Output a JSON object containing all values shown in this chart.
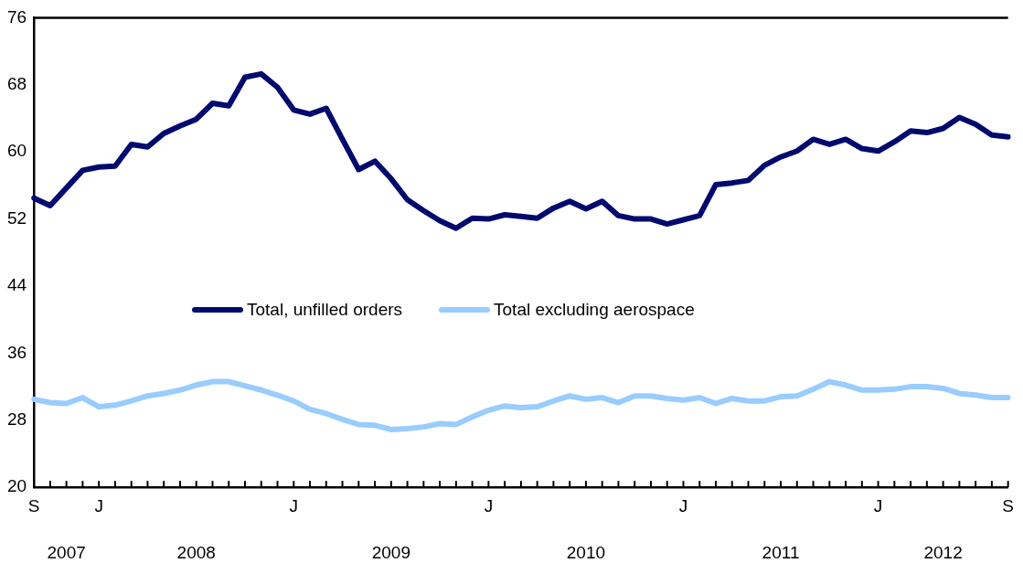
{
  "chart_data": {
    "type": "line",
    "categories": [
      "S",
      null,
      null,
      null,
      "J",
      null,
      null,
      null,
      null,
      null,
      null,
      null,
      null,
      null,
      null,
      null,
      "J",
      null,
      null,
      null,
      null,
      null,
      null,
      null,
      null,
      null,
      null,
      null,
      "J",
      null,
      null,
      null,
      null,
      null,
      null,
      null,
      null,
      null,
      null,
      null,
      "J",
      null,
      null,
      null,
      null,
      null,
      null,
      null,
      null,
      null,
      null,
      null,
      "J",
      null,
      null,
      null,
      null,
      null,
      null,
      null,
      "S"
    ],
    "series": [
      {
        "name": "Total, unfilled orders",
        "color": "#000a6e",
        "values": [
          54.5,
          53.6,
          55.7,
          57.8,
          58.2,
          58.3,
          60.9,
          60.6,
          62.2,
          63.1,
          63.9,
          65.8,
          65.5,
          68.9,
          69.3,
          67.7,
          65.0,
          64.5,
          65.2,
          61.5,
          57.9,
          58.9,
          56.8,
          54.3,
          53.0,
          51.8,
          50.9,
          52.1,
          52.0,
          52.5,
          52.3,
          52.1,
          53.3,
          54.1,
          53.2,
          54.1,
          52.4,
          52.0,
          52.0,
          51.4,
          51.9,
          52.4,
          56.1,
          56.3,
          56.6,
          58.4,
          59.4,
          60.1,
          61.5,
          60.9,
          61.5,
          60.4,
          60.1,
          61.2,
          62.5,
          62.3,
          62.8,
          64.1,
          63.3,
          62.0,
          61.8
        ]
      },
      {
        "name": "Total excluding aerospace",
        "color": "#99ccff",
        "values": [
          30.5,
          30.1,
          30.0,
          30.7,
          29.6,
          29.8,
          30.3,
          30.9,
          31.2,
          31.6,
          32.2,
          32.6,
          32.6,
          32.1,
          31.6,
          31.0,
          30.3,
          29.3,
          28.8,
          28.1,
          27.5,
          27.4,
          26.9,
          27.0,
          27.2,
          27.6,
          27.5,
          28.4,
          29.2,
          29.7,
          29.5,
          29.6,
          30.3,
          30.9,
          30.5,
          30.7,
          30.1,
          30.9,
          30.9,
          30.6,
          30.4,
          30.7,
          30.0,
          30.6,
          30.3,
          30.3,
          30.8,
          30.9,
          31.7,
          32.6,
          32.2,
          31.6,
          31.6,
          31.7,
          32.0,
          32.0,
          31.8,
          31.2,
          31.0,
          30.7,
          30.7
        ]
      }
    ],
    "annotations": [
      "2007",
      "2008",
      "2009",
      "2010",
      "2011",
      "2012"
    ],
    "ylim": [
      20,
      76
    ],
    "yticks": [
      20,
      28,
      36,
      44,
      52,
      60,
      68,
      76
    ],
    "grid": false,
    "legend": "center",
    "marker": "none",
    "line_style": "solid"
  }
}
